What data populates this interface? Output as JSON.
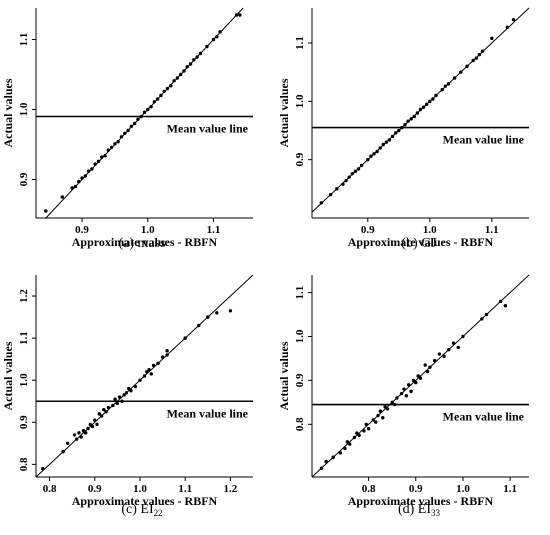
{
  "caption_prefixes": [
    "(a)",
    "(b)",
    "(c)",
    "(d)"
  ],
  "chart_data": [
    {
      "type": "scatter",
      "caption": "mass",
      "xlabel": "Approximate values - RBFN",
      "ylabel": "Actual values",
      "xlim": [
        0.83,
        1.16
      ],
      "ylim": [
        0.845,
        1.145
      ],
      "xticks": [
        0.9,
        1.0,
        1.1
      ],
      "yticks": [
        0.9,
        1.0,
        1.1
      ],
      "tick_labels_x": [
        "0.9",
        "1.0",
        "1.1"
      ],
      "tick_labels_y": [
        "0.9",
        "1.0",
        "1.1"
      ],
      "mean_line_y": 0.99,
      "annotation": "Mean value line",
      "line": "y = x",
      "x": [
        0.845,
        0.87,
        0.885,
        0.89,
        0.895,
        0.9,
        0.905,
        0.91,
        0.915,
        0.92,
        0.925,
        0.93,
        0.935,
        0.94,
        0.945,
        0.95,
        0.955,
        0.96,
        0.965,
        0.97,
        0.975,
        0.98,
        0.985,
        0.99,
        0.995,
        1.0,
        1.005,
        1.01,
        1.015,
        1.02,
        1.025,
        1.03,
        1.035,
        1.04,
        1.045,
        1.05,
        1.055,
        1.06,
        1.065,
        1.07,
        1.075,
        1.08,
        1.09,
        1.1,
        1.105,
        1.11,
        1.135,
        1.14
      ],
      "y": [
        0.855,
        0.875,
        0.888,
        0.89,
        0.897,
        0.902,
        0.905,
        0.912,
        0.915,
        0.922,
        0.926,
        0.932,
        0.934,
        0.942,
        0.946,
        0.951,
        0.954,
        0.961,
        0.966,
        0.97,
        0.976,
        0.98,
        0.986,
        0.99,
        0.996,
        1.0,
        1.004,
        1.011,
        1.015,
        1.02,
        1.026,
        1.03,
        1.034,
        1.041,
        1.045,
        1.05,
        1.055,
        1.061,
        1.065,
        1.071,
        1.075,
        1.08,
        1.09,
        1.1,
        1.104,
        1.111,
        1.135,
        1.135
      ]
    },
    {
      "type": "scatter",
      "caption": "GJ",
      "xlabel": "Approximate values - RBFN",
      "ylabel": "Actual values",
      "xlim": [
        0.81,
        1.16
      ],
      "ylim": [
        0.8,
        1.16
      ],
      "xticks": [
        0.9,
        1.0,
        1.1
      ],
      "yticks": [
        0.9,
        1.0,
        1.1
      ],
      "tick_labels_x": [
        "0.9",
        "1.0",
        "1.1"
      ],
      "tick_labels_y": [
        "0.9",
        "1.0",
        "1.1"
      ],
      "mean_line_y": 0.955,
      "annotation": "Mean value line",
      "line": "y = x",
      "x": [
        0.825,
        0.84,
        0.85,
        0.86,
        0.865,
        0.87,
        0.875,
        0.88,
        0.885,
        0.89,
        0.9,
        0.905,
        0.91,
        0.915,
        0.92,
        0.925,
        0.93,
        0.935,
        0.94,
        0.945,
        0.95,
        0.955,
        0.96,
        0.965,
        0.97,
        0.975,
        0.98,
        0.985,
        0.99,
        0.995,
        1.0,
        1.005,
        1.01,
        1.02,
        1.025,
        1.03,
        1.04,
        1.05,
        1.06,
        1.07,
        1.075,
        1.08,
        1.085,
        1.1,
        1.125,
        1.135
      ],
      "y": [
        0.826,
        0.84,
        0.85,
        0.858,
        0.864,
        0.87,
        0.876,
        0.88,
        0.884,
        0.89,
        0.9,
        0.906,
        0.91,
        0.914,
        0.92,
        0.926,
        0.93,
        0.934,
        0.94,
        0.946,
        0.95,
        0.955,
        0.96,
        0.966,
        0.97,
        0.974,
        0.98,
        0.986,
        0.99,
        0.995,
        1.0,
        1.004,
        1.01,
        1.02,
        1.026,
        1.03,
        1.04,
        1.05,
        1.06,
        1.07,
        1.074,
        1.08,
        1.086,
        1.108,
        1.127,
        1.14
      ]
    },
    {
      "type": "scatter",
      "caption": "EI22",
      "caption_main": "EI",
      "caption_sub": "22",
      "xlabel": "Approximate values - RBFN",
      "ylabel": "Actual values",
      "xlim": [
        0.77,
        1.25
      ],
      "ylim": [
        0.77,
        1.25
      ],
      "xticks": [
        0.8,
        0.9,
        1.0,
        1.1,
        1.2
      ],
      "yticks": [
        0.8,
        0.9,
        1.0,
        1.1,
        1.2
      ],
      "tick_labels_x": [
        "0.8",
        "0.9",
        "1.0",
        "1.1",
        "1.2"
      ],
      "tick_labels_y": [
        "0.8",
        "0.9",
        "1.0",
        "1.1",
        "1.2"
      ],
      "mean_line_y": 0.95,
      "annotation": "Mean value line",
      "line": "y = x",
      "x": [
        0.785,
        0.83,
        0.84,
        0.855,
        0.86,
        0.865,
        0.87,
        0.875,
        0.88,
        0.885,
        0.89,
        0.895,
        0.9,
        0.905,
        0.91,
        0.915,
        0.92,
        0.925,
        0.93,
        0.94,
        0.945,
        0.95,
        0.955,
        0.96,
        0.965,
        0.97,
        0.975,
        0.98,
        0.99,
        1.0,
        1.01,
        1.015,
        1.02,
        1.025,
        1.03,
        1.04,
        1.05,
        1.06,
        1.06,
        1.1,
        1.13,
        1.15,
        1.17,
        1.2
      ],
      "y": [
        0.79,
        0.83,
        0.85,
        0.87,
        0.86,
        0.875,
        0.865,
        0.88,
        0.875,
        0.885,
        0.895,
        0.89,
        0.905,
        0.895,
        0.92,
        0.915,
        0.93,
        0.925,
        0.935,
        0.94,
        0.955,
        0.945,
        0.96,
        0.95,
        0.965,
        0.97,
        0.98,
        0.975,
        0.985,
        1.0,
        1.01,
        1.02,
        1.025,
        1.015,
        1.035,
        1.04,
        1.055,
        1.06,
        1.07,
        1.1,
        1.13,
        1.15,
        1.16,
        1.165
      ]
    },
    {
      "type": "scatter",
      "caption": "EI33",
      "caption_main": "EI",
      "caption_sub": "33",
      "xlabel": "Approximate values - RBFN",
      "ylabel": "Actual values",
      "xlim": [
        0.68,
        1.14
      ],
      "ylim": [
        0.68,
        1.14
      ],
      "xticks": [
        0.8,
        0.9,
        1.0,
        1.1
      ],
      "yticks": [
        0.8,
        0.9,
        1.0,
        1.1
      ],
      "tick_labels_x": [
        "0.8",
        "0.9",
        "1.0",
        "1.1"
      ],
      "tick_labels_y": [
        "0.8",
        "0.9",
        "1.0",
        "1.1"
      ],
      "mean_line_y": 0.845,
      "annotation": "Mean value line",
      "line": "y = x",
      "x": [
        0.7,
        0.71,
        0.725,
        0.74,
        0.75,
        0.755,
        0.76,
        0.77,
        0.775,
        0.78,
        0.79,
        0.795,
        0.8,
        0.81,
        0.815,
        0.82,
        0.825,
        0.83,
        0.835,
        0.84,
        0.85,
        0.855,
        0.86,
        0.87,
        0.875,
        0.88,
        0.885,
        0.89,
        0.895,
        0.9,
        0.905,
        0.91,
        0.92,
        0.925,
        0.93,
        0.94,
        0.95,
        0.96,
        0.97,
        0.98,
        0.99,
        1.0,
        1.04,
        1.05,
        1.08,
        1.09
      ],
      "y": [
        0.7,
        0.715,
        0.725,
        0.735,
        0.745,
        0.76,
        0.755,
        0.77,
        0.78,
        0.775,
        0.785,
        0.8,
        0.79,
        0.81,
        0.805,
        0.82,
        0.83,
        0.815,
        0.84,
        0.835,
        0.85,
        0.845,
        0.86,
        0.87,
        0.88,
        0.865,
        0.89,
        0.875,
        0.9,
        0.895,
        0.91,
        0.905,
        0.935,
        0.92,
        0.93,
        0.945,
        0.96,
        0.955,
        0.97,
        0.985,
        0.975,
        1.0,
        1.04,
        1.05,
        1.08,
        1.07
      ]
    }
  ]
}
